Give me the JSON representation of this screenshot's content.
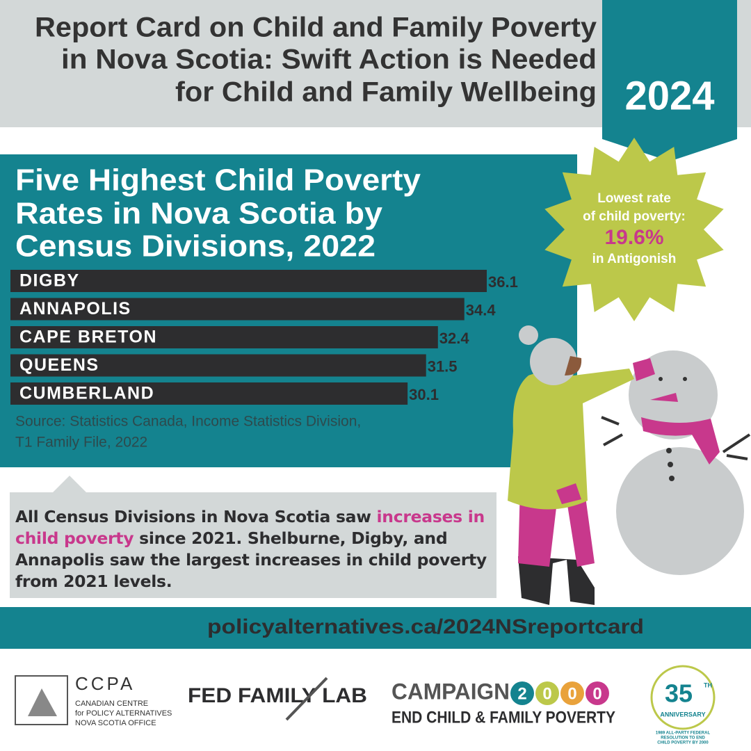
{
  "header": {
    "title_lines": [
      "Report Card on Child and Family Poverty",
      "in Nova Scotia: Swift Action is Needed",
      "for Child and Family Wellbeing"
    ],
    "year": "2024"
  },
  "chart_data": {
    "type": "bar",
    "orientation": "horizontal",
    "title_lines": [
      "Five Highest Child Poverty",
      "Rates in Nova Scotia by",
      "Census Divisions, 2022"
    ],
    "categories": [
      "DIGBY",
      "ANNAPOLIS",
      "CAPE BRETON",
      "QUEENS",
      "CUMBERLAND"
    ],
    "values": [
      36.1,
      34.4,
      32.4,
      31.5,
      30.1
    ],
    "color": "#2d2d2f",
    "source_lines": [
      "Source: Statistics Canada, Income Statistics Division,",
      "T1 Family File, 2022"
    ]
  },
  "starburst": {
    "lines": [
      "Lowest rate",
      "of child poverty:"
    ],
    "highlight": "19.6%",
    "after": "in Antigonish"
  },
  "callout": {
    "before": "All Census Divisions in Nova Scotia saw ",
    "highlight": "increases in child poverty",
    "after": " since 2021. Shelburne, Digby, and Annapolis saw the largest increases in child poverty from 2021 levels."
  },
  "url": "policyalternatives.ca/2024NSreportcard",
  "logos": {
    "ccpa": "CCPA",
    "ccpa_lines": [
      "CANADIAN CENTRE",
      "for POLICY ALTERNATIVES",
      "NOVA SCOTIA OFFICE"
    ],
    "fed": "FED FAMILY LAB",
    "campaign": "CAMPAIGN",
    "campaign_digits": [
      "2",
      "0",
      "0",
      "0"
    ],
    "campaign_sub": "END CHILD & FAMILY POVERTY",
    "anniv_number": "35",
    "anniv_sup": "TH",
    "anniv_word": "ANNIVERSARY",
    "anniv_lines": [
      "1989 ALL-PARTY FEDERAL",
      "RESOLUTION TO END",
      "CHILD POVERTY BY 2000"
    ]
  }
}
